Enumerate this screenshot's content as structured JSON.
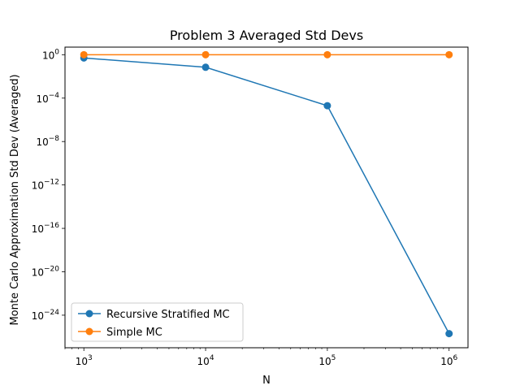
{
  "chart_data": {
    "type": "line",
    "title": "Problem 3 Averaged Std Devs",
    "xlabel": "N",
    "ylabel": "Monte Carlo Approximation Std Dev (Averaged)",
    "xscale": "log",
    "yscale": "log",
    "xlim": [
      700,
      1430000
    ],
    "ylim": [
      1e-27,
      5
    ],
    "x": [
      1000,
      10000,
      100000,
      1000000
    ],
    "x_ticks": [
      {
        "base": "10",
        "exp": "3",
        "value": 1000
      },
      {
        "base": "10",
        "exp": "4",
        "value": 10000
      },
      {
        "base": "10",
        "exp": "5",
        "value": 100000
      },
      {
        "base": "10",
        "exp": "6",
        "value": 1000000
      }
    ],
    "y_ticks": [
      {
        "base": "10",
        "exp": "0",
        "value": 1
      },
      {
        "base": "10",
        "exp": "−4",
        "value": 0.0001
      },
      {
        "base": "10",
        "exp": "−8",
        "value": 1e-08
      },
      {
        "base": "10",
        "exp": "−12",
        "value": 1e-12
      },
      {
        "base": "10",
        "exp": "−16",
        "value": 1e-16
      },
      {
        "base": "10",
        "exp": "−20",
        "value": 1e-20
      },
      {
        "base": "10",
        "exp": "−24",
        "value": 1e-24
      }
    ],
    "series": [
      {
        "name": "Recursive Stratified MC",
        "color": "#1f77b4",
        "values": [
          0.5,
          0.07,
          2e-05,
          2e-26
        ]
      },
      {
        "name": "Simple MC",
        "color": "#ff7f0e",
        "values": [
          1,
          1,
          1,
          1
        ]
      }
    ],
    "legend": "lower-left",
    "grid": false
  }
}
